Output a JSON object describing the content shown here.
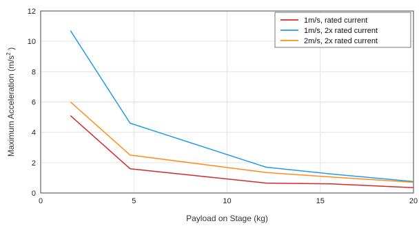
{
  "chart_data": {
    "type": "line",
    "title": "",
    "xlabel": "Payload on Stage (kg)",
    "ylabel_main": "Maximum Acceleration (m/s",
    "ylabel_sup": "2",
    "ylabel_tail": " )",
    "xlim": [
      0,
      20
    ],
    "ylim": [
      0,
      12
    ],
    "xticks": [
      0,
      5,
      10,
      15,
      20
    ],
    "xtick_labels": [
      "0",
      "5",
      "10",
      "15",
      "20"
    ],
    "yticks": [
      0,
      2,
      4,
      6,
      8,
      10,
      12
    ],
    "ytick_labels": [
      "0",
      "2",
      "4",
      "6",
      "8",
      "10",
      "12"
    ],
    "grid": true,
    "legend_position": "top-right",
    "series": [
      {
        "name": "1m/s, rated current",
        "color": "#d62728",
        "x": [
          1.6,
          4.8,
          12.1,
          15.6,
          20
        ],
        "y": [
          5.1,
          1.6,
          0.65,
          0.6,
          0.35
        ]
      },
      {
        "name": "1m/s, 2x rated current",
        "color": "#1f9be8",
        "x": [
          1.6,
          4.8,
          12.1,
          15.6,
          20
        ],
        "y": [
          10.7,
          4.6,
          1.7,
          1.25,
          0.75
        ]
      },
      {
        "name": "2m/s, 2x rated current",
        "color": "#ff8c1a",
        "x": [
          1.6,
          4.8,
          12.1,
          15.6,
          20
        ],
        "y": [
          6.0,
          2.5,
          1.35,
          1.05,
          0.7
        ]
      }
    ]
  }
}
